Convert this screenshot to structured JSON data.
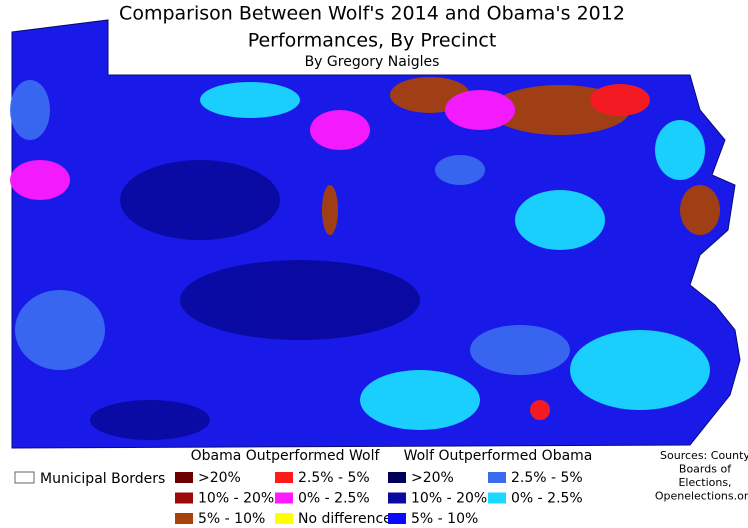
{
  "title": {
    "lines": [
      "Comparison Between Wolf's 2014 and Obama's 2012",
      "Performances, By Precinct"
    ],
    "byline": "By Gregory Naigles"
  },
  "legend": {
    "municipal_borders": "Municipal Borders",
    "groups": [
      {
        "title": "Obama Outperformed Wolf",
        "items": [
          {
            "label": ">20%",
            "color": "#6b0000"
          },
          {
            "label": "10% - 20%",
            "color": "#9c0a0a"
          },
          {
            "label": "5% - 10%",
            "color": "#a8420a"
          },
          {
            "label": "2.5% - 5%",
            "color": "#ff1a1a"
          },
          {
            "label": "0% - 2.5%",
            "color": "#ff1aff"
          },
          {
            "label": "No difference",
            "color": "#ffff00"
          }
        ]
      },
      {
        "title": "Wolf Outperformed Obama",
        "items": [
          {
            "label": ">20%",
            "color": "#00005a"
          },
          {
            "label": "10% - 20%",
            "color": "#0a0aa0"
          },
          {
            "label": "5% - 10%",
            "color": "#0a0aff"
          },
          {
            "label": "2.5% - 5%",
            "color": "#3a6af0"
          },
          {
            "label": "0% - 2.5%",
            "color": "#1ad8ff"
          }
        ]
      }
    ]
  },
  "sources": [
    "Sources: County",
    "Boards of",
    "Elections,",
    "Openelections.org"
  ]
}
